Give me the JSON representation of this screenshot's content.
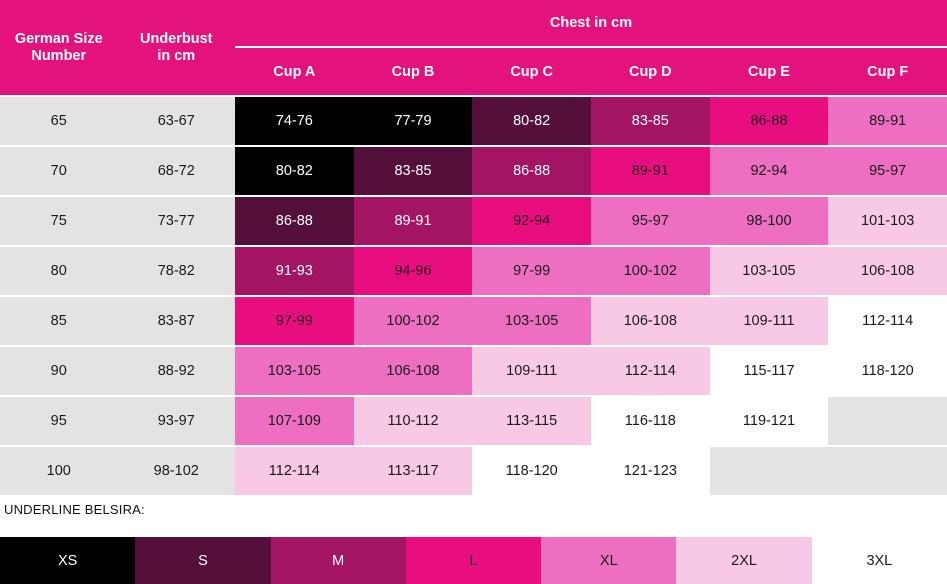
{
  "colors": {
    "header_pink": "#E4127D",
    "grey_cell": "#E4E3E3",
    "divider_white": "#FFFFFF",
    "dark_text": "#1A1A1A",
    "white_text": "#FFFFFF",
    "size_fills": {
      "XS": {
        "bg": "#000000",
        "text": "#FFFFFF"
      },
      "S": {
        "bg": "#540F3A",
        "text": "#FFFFFF"
      },
      "M": {
        "bg": "#A31562",
        "text": "#FFFFFF"
      },
      "L": {
        "bg": "#E80E7F",
        "text": "#2A0A1E"
      },
      "XL": {
        "bg": "#EE6FC1",
        "text": "#1A1A1A"
      },
      "2XL": {
        "bg": "#F8C9E5",
        "text": "#1A1A1A"
      },
      "3XL": {
        "bg": "#FFFFFF",
        "text": "#1A1A1A"
      },
      "empty": {
        "bg": "#E4E3E3",
        "text": "#1A1A1A"
      }
    }
  },
  "header": {
    "col1_line1": "German Size",
    "col1_line2": "Number",
    "col2_line1": "Underbust",
    "col2_line2": "in cm",
    "chest_title": "Chest in cm",
    "cups": [
      "Cup A",
      "Cup B",
      "Cup C",
      "Cup D",
      "Cup E",
      "Cup F"
    ]
  },
  "legend": {
    "caption": "UNDERLINE BELSIRA:",
    "items": [
      {
        "label": "XS",
        "size": "XS"
      },
      {
        "label": "S",
        "size": "S"
      },
      {
        "label": "M",
        "size": "M"
      },
      {
        "label": "L",
        "size": "L"
      },
      {
        "label": "XL",
        "size": "XL"
      },
      {
        "label": "2XL",
        "size": "2XL"
      },
      {
        "label": "3XL",
        "size": "3XL"
      }
    ]
  },
  "chart_data": {
    "type": "table",
    "title": "Chest in cm",
    "row_header_labels": [
      "German Size Number",
      "Underbust in cm"
    ],
    "column_headers": [
      "Cup A",
      "Cup B",
      "Cup C",
      "Cup D",
      "Cup E",
      "Cup F"
    ],
    "legend_sizes": [
      "XS",
      "S",
      "M",
      "L",
      "XL",
      "2XL",
      "3XL"
    ],
    "rows": [
      {
        "size": "65",
        "underbust": "63-67",
        "cells": [
          {
            "text": "74-76",
            "fill": "XS"
          },
          {
            "text": "77-79",
            "fill": "XS"
          },
          {
            "text": "80-82",
            "fill": "S"
          },
          {
            "text": "83-85",
            "fill": "M"
          },
          {
            "text": "86-88",
            "fill": "L"
          },
          {
            "text": "89-91",
            "fill": "XL"
          }
        ]
      },
      {
        "size": "70",
        "underbust": "68-72",
        "cells": [
          {
            "text": "80-82",
            "fill": "XS"
          },
          {
            "text": "83-85",
            "fill": "S"
          },
          {
            "text": "86-88",
            "fill": "M"
          },
          {
            "text": "89-91",
            "fill": "L"
          },
          {
            "text": "92-94",
            "fill": "XL"
          },
          {
            "text": "95-97",
            "fill": "XL"
          }
        ]
      },
      {
        "size": "75",
        "underbust": "73-77",
        "cells": [
          {
            "text": "86-88",
            "fill": "S"
          },
          {
            "text": "89-91",
            "fill": "M"
          },
          {
            "text": "92-94",
            "fill": "L"
          },
          {
            "text": "95-97",
            "fill": "XL"
          },
          {
            "text": "98-100",
            "fill": "XL"
          },
          {
            "text": "101-103",
            "fill": "2XL"
          }
        ]
      },
      {
        "size": "80",
        "underbust": "78-82",
        "cells": [
          {
            "text": "91-93",
            "fill": "M"
          },
          {
            "text": "94-96",
            "fill": "L"
          },
          {
            "text": "97-99",
            "fill": "XL"
          },
          {
            "text": "100-102",
            "fill": "XL"
          },
          {
            "text": "103-105",
            "fill": "2XL"
          },
          {
            "text": "106-108",
            "fill": "2XL"
          }
        ]
      },
      {
        "size": "85",
        "underbust": "83-87",
        "cells": [
          {
            "text": "97-99",
            "fill": "L"
          },
          {
            "text": "100-102",
            "fill": "XL"
          },
          {
            "text": "103-105",
            "fill": "XL"
          },
          {
            "text": "106-108",
            "fill": "2XL"
          },
          {
            "text": "109-111",
            "fill": "2XL"
          },
          {
            "text": "112-114",
            "fill": "3XL"
          }
        ]
      },
      {
        "size": "90",
        "underbust": "88-92",
        "cells": [
          {
            "text": "103-105",
            "fill": "XL"
          },
          {
            "text": "106-108",
            "fill": "XL"
          },
          {
            "text": "109-111",
            "fill": "2XL"
          },
          {
            "text": "112-114",
            "fill": "2XL"
          },
          {
            "text": "115-117",
            "fill": "3XL"
          },
          {
            "text": "118-120",
            "fill": "3XL"
          }
        ]
      },
      {
        "size": "95",
        "underbust": "93-97",
        "cells": [
          {
            "text": "107-109",
            "fill": "XL"
          },
          {
            "text": "110-112",
            "fill": "2XL"
          },
          {
            "text": "113-115",
            "fill": "2XL"
          },
          {
            "text": "116-118",
            "fill": "3XL"
          },
          {
            "text": "119-121",
            "fill": "3XL"
          },
          {
            "text": "",
            "fill": "empty"
          }
        ]
      },
      {
        "size": "100",
        "underbust": "98-102",
        "cells": [
          {
            "text": "112-114",
            "fill": "2XL"
          },
          {
            "text": "113-117",
            "fill": "2XL"
          },
          {
            "text": "118-120",
            "fill": "3XL"
          },
          {
            "text": "121-123",
            "fill": "3XL"
          },
          {
            "text": "",
            "fill": "empty"
          },
          {
            "text": "",
            "fill": "empty"
          }
        ]
      }
    ]
  }
}
